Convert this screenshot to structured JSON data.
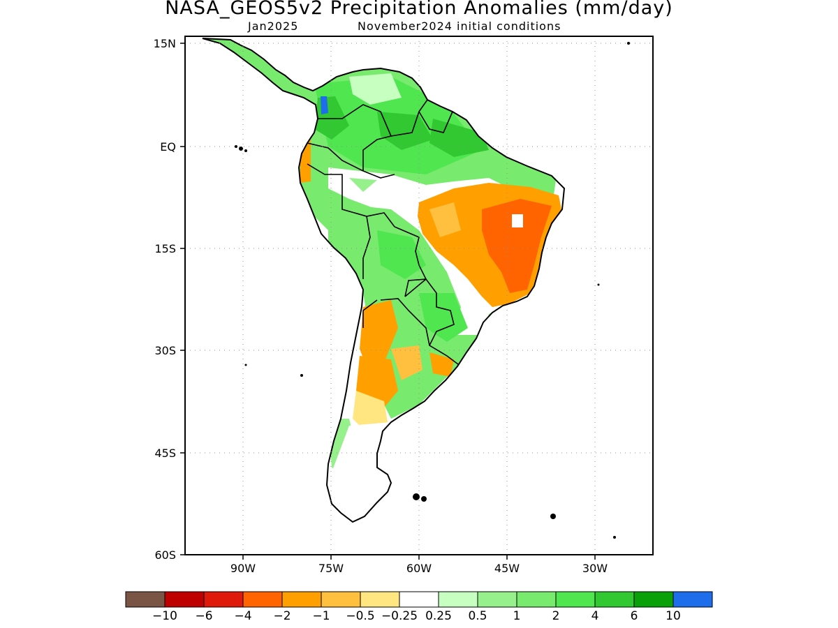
{
  "title": "NASA_GEOS5v2 Precipitation Anomalies (mm/day)",
  "subtitle_left": "Jan2025",
  "subtitle_right": "November2024 initial conditions",
  "axes": {
    "lon_range": [
      -102,
      -22
    ],
    "lat_range": [
      -60,
      15
    ],
    "lat_ticks": [
      "15N",
      "EQ",
      "15S",
      "30S",
      "45S",
      "60S"
    ],
    "lon_ticks": [
      "90W",
      "75W",
      "60W",
      "45W",
      "30W"
    ],
    "grid": "dotted"
  },
  "colorbar": {
    "labels": [
      "-10",
      "-6",
      "-4",
      "-2",
      "-1",
      "-0.5",
      "-0.25",
      "0.25",
      "0.5",
      "1",
      "2",
      "4",
      "6",
      "10"
    ],
    "colors": [
      "#7a5545",
      "#bf0000",
      "#e01a0a",
      "#ff6400",
      "#ffa000",
      "#ffc040",
      "#ffe680",
      "#ffffff",
      "#c6ffc0",
      "#96f08c",
      "#78eb6e",
      "#50e650",
      "#32c832",
      "#0aa00a",
      "#1e6eeb"
    ]
  }
}
